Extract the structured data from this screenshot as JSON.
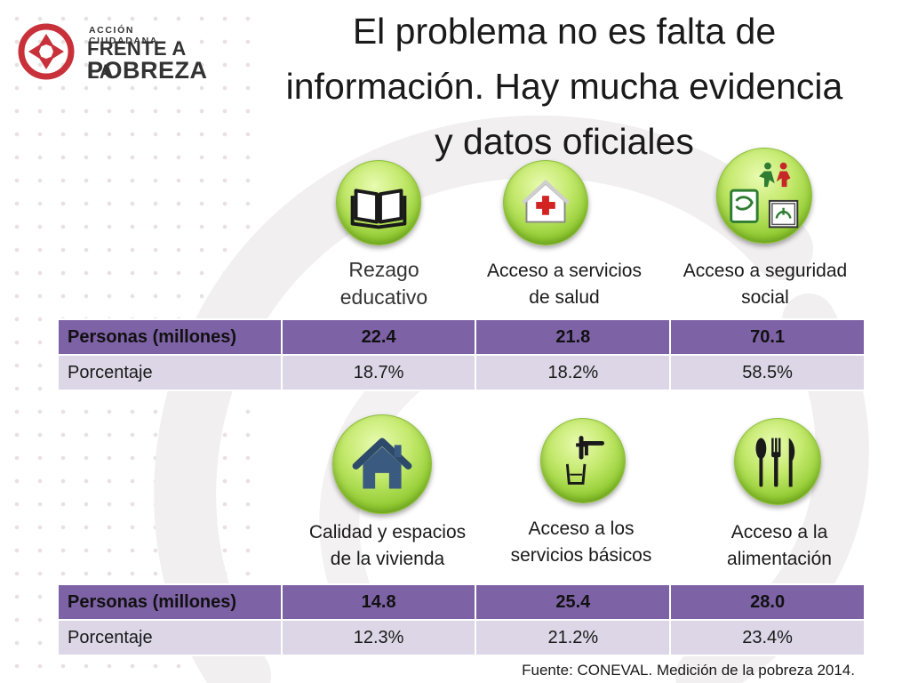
{
  "logo": {
    "line1": "ACCIÓN CIUDADANA",
    "line2": "FRENTE A LA",
    "line3": "POBREZA",
    "brand_color": "#c8313a"
  },
  "title": {
    "lines": [
      "El problema no es falta de",
      "información.  Hay mucha evidencia",
      "y datos oficiales"
    ]
  },
  "icons": [
    {
      "name": "book-icon"
    },
    {
      "name": "health-house-icon"
    },
    {
      "name": "social-security-icon"
    },
    {
      "name": "house-icon"
    },
    {
      "name": "water-tap-icon"
    },
    {
      "name": "cutlery-icon"
    }
  ],
  "row1_labels": [
    [
      "Rezago",
      "educativo"
    ],
    [
      "Acceso a servicios",
      "de salud"
    ],
    [
      "Acceso a seguridad",
      "social"
    ]
  ],
  "row2_labels": [
    [
      "Calidad y espacios",
      "de la vivienda"
    ],
    [
      "Acceso a los",
      "servicios básicos"
    ],
    [
      "Acceso a la",
      "alimentación"
    ]
  ],
  "table1": {
    "head": [
      "Personas (millones)",
      "22.4",
      "21.8",
      "70.1"
    ],
    "pct": [
      "Porcentaje",
      "18.7%",
      "18.2%",
      "58.5%"
    ]
  },
  "table2": {
    "head": [
      "Personas (millones)",
      "14.8",
      "25.4",
      "28.0"
    ],
    "pct": [
      "Porcentaje",
      "12.3%",
      "21.2%",
      "23.4%"
    ]
  },
  "source": "Fuente: CONEVAL. Medición de la pobreza 2014.",
  "colors": {
    "header_row": "#7e62a6",
    "pct_row": "#dcd6e6",
    "icon_green": "#a3d646"
  }
}
